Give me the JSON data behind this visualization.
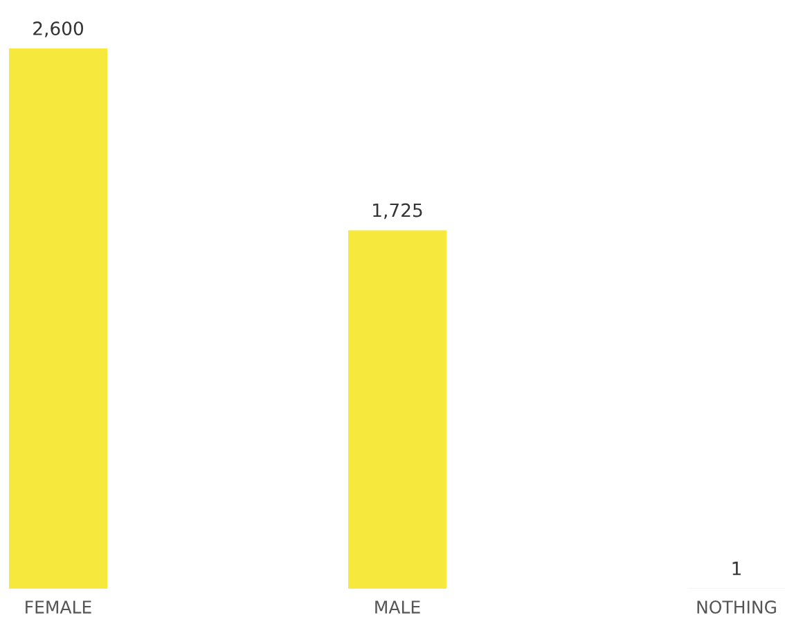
{
  "chart_data": {
    "type": "bar",
    "categories": [
      "FEMALE",
      "MALE",
      "NOTHING"
    ],
    "values": [
      2600,
      1725,
      1
    ],
    "color": "#f7e83e",
    "value_labels": [
      "2,600",
      "1,725",
      "1"
    ]
  }
}
